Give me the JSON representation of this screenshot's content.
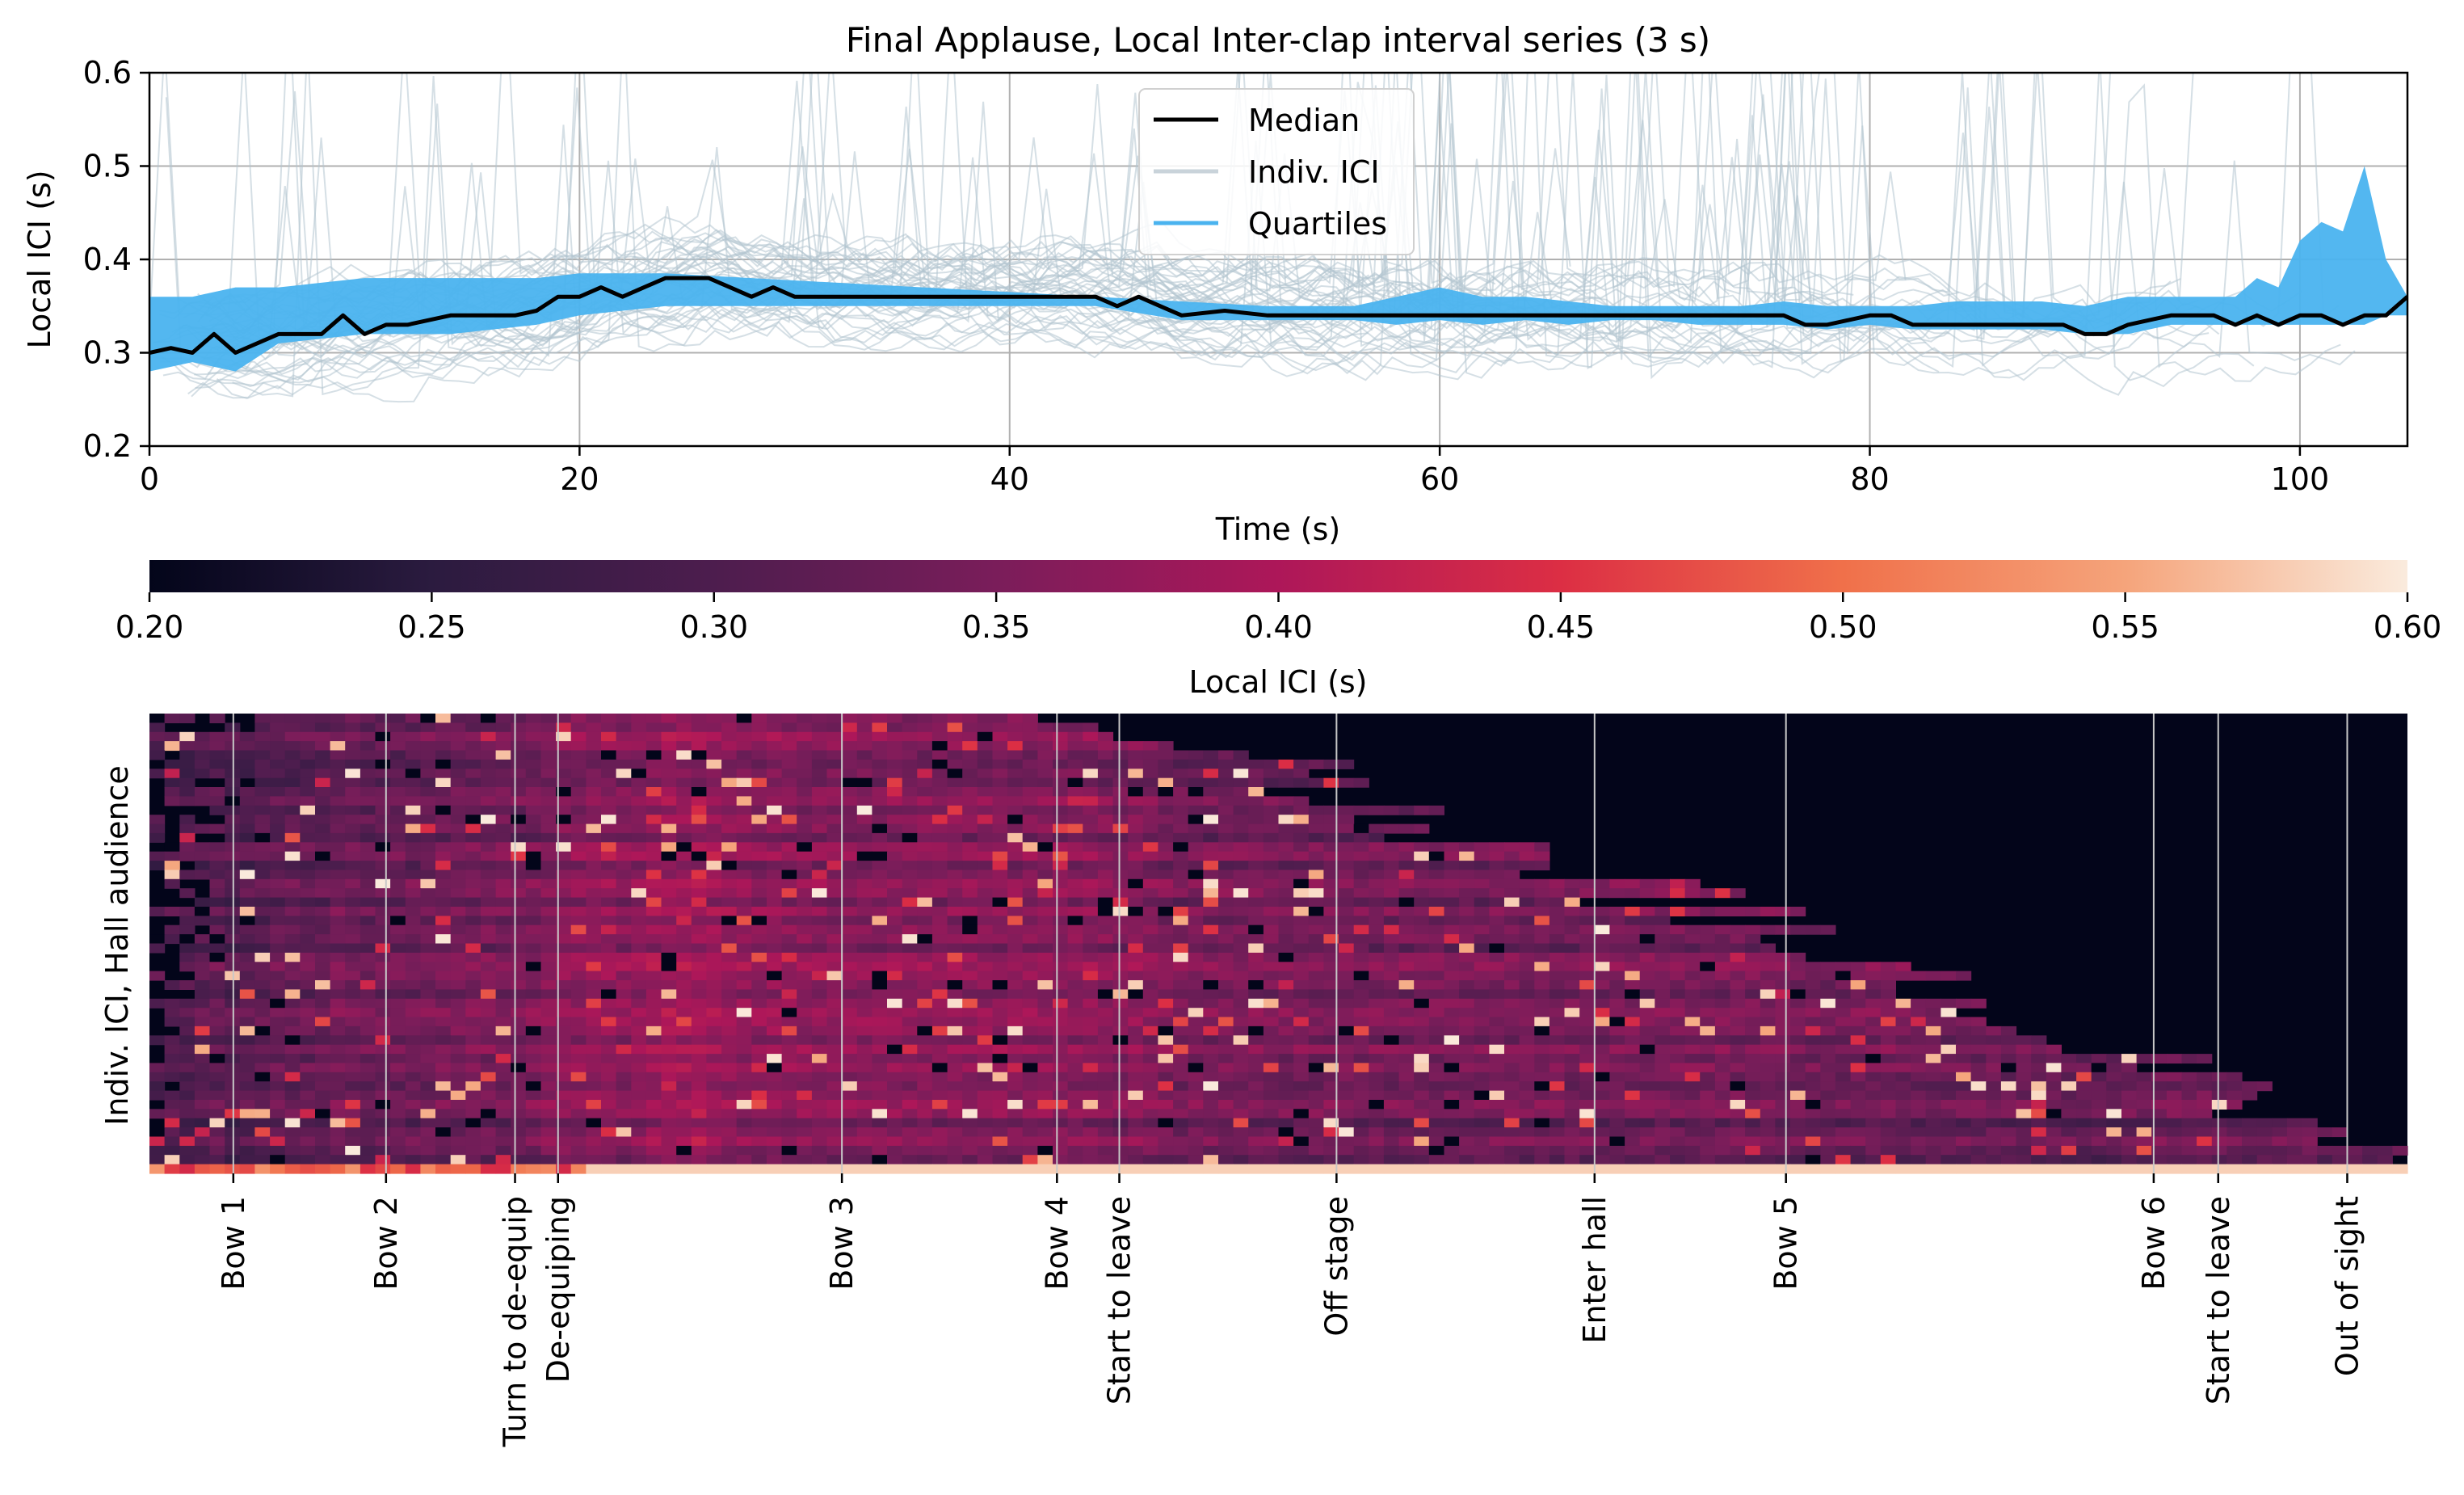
{
  "chart_data": [
    {
      "type": "line",
      "title": "Final Applause, Local Inter-clap interval series (3 s)",
      "xlabel": "Time (s)",
      "ylabel": "Local ICI (s)",
      "xlim": [
        0,
        105
      ],
      "ylim": [
        0.2,
        0.6
      ],
      "xticks": [
        0,
        20,
        40,
        60,
        80,
        100
      ],
      "yticks": [
        0.2,
        0.3,
        0.4,
        0.5,
        0.6
      ],
      "xtick_labels": [
        "0",
        "20",
        "40",
        "60",
        "80",
        "100"
      ],
      "ytick_labels": [
        "0.2",
        "0.3",
        "0.4",
        "0.5",
        "0.6"
      ],
      "grid": true,
      "legend_position": "top-center",
      "legend": [
        "Median",
        "Indiv. ICI",
        "Quartiles"
      ],
      "colors": {
        "median": "#000000",
        "indiv": "#b7c7d3",
        "quartiles": "#4ab3ef"
      },
      "median": {
        "x": [
          0,
          1,
          2,
          3,
          4,
          6,
          8,
          9,
          10,
          11,
          12,
          14,
          16,
          17,
          18,
          19,
          20,
          21,
          22,
          23,
          24,
          26,
          27,
          28,
          29,
          30,
          33,
          36,
          40,
          44,
          45,
          46,
          47,
          48,
          50,
          52,
          56,
          60,
          65,
          70,
          75,
          76,
          77,
          78,
          80,
          81,
          82,
          84,
          86,
          88,
          89,
          90,
          91,
          92,
          94,
          96,
          97,
          98,
          99,
          100,
          101,
          102,
          103,
          104,
          105
        ],
        "y": [
          0.3,
          0.305,
          0.3,
          0.32,
          0.3,
          0.32,
          0.32,
          0.34,
          0.32,
          0.33,
          0.33,
          0.34,
          0.34,
          0.34,
          0.345,
          0.36,
          0.36,
          0.37,
          0.36,
          0.37,
          0.38,
          0.38,
          0.37,
          0.36,
          0.37,
          0.36,
          0.36,
          0.36,
          0.36,
          0.36,
          0.35,
          0.36,
          0.35,
          0.34,
          0.345,
          0.34,
          0.34,
          0.34,
          0.34,
          0.34,
          0.34,
          0.34,
          0.33,
          0.33,
          0.34,
          0.34,
          0.33,
          0.33,
          0.33,
          0.33,
          0.33,
          0.32,
          0.32,
          0.33,
          0.34,
          0.34,
          0.33,
          0.34,
          0.33,
          0.34,
          0.34,
          0.33,
          0.34,
          0.34,
          0.36
        ]
      },
      "quartiles": {
        "x": [
          0,
          2,
          4,
          6,
          10,
          12,
          14,
          18,
          20,
          24,
          28,
          32,
          36,
          40,
          44,
          48,
          52,
          56,
          58,
          60,
          62,
          64,
          66,
          68,
          70,
          72,
          74,
          76,
          78,
          80,
          82,
          84,
          86,
          88,
          90,
          92,
          94,
          96,
          97,
          98,
          99,
          100,
          101,
          102,
          103,
          104,
          105
        ],
        "lower": [
          0.28,
          0.29,
          0.28,
          0.31,
          0.32,
          0.32,
          0.32,
          0.33,
          0.34,
          0.35,
          0.35,
          0.35,
          0.35,
          0.35,
          0.35,
          0.335,
          0.335,
          0.335,
          0.33,
          0.335,
          0.33,
          0.335,
          0.33,
          0.335,
          0.335,
          0.33,
          0.33,
          0.33,
          0.325,
          0.33,
          0.325,
          0.325,
          0.325,
          0.325,
          0.32,
          0.32,
          0.33,
          0.33,
          0.33,
          0.33,
          0.33,
          0.33,
          0.33,
          0.33,
          0.33,
          0.34,
          0.34
        ],
        "upper": [
          0.36,
          0.36,
          0.37,
          0.37,
          0.38,
          0.38,
          0.38,
          0.38,
          0.385,
          0.385,
          0.38,
          0.375,
          0.37,
          0.365,
          0.36,
          0.355,
          0.35,
          0.35,
          0.36,
          0.37,
          0.36,
          0.36,
          0.355,
          0.35,
          0.35,
          0.35,
          0.35,
          0.355,
          0.35,
          0.35,
          0.35,
          0.355,
          0.355,
          0.355,
          0.35,
          0.36,
          0.36,
          0.36,
          0.36,
          0.38,
          0.37,
          0.42,
          0.44,
          0.43,
          0.5,
          0.4,
          0.36
        ]
      }
    },
    {
      "type": "heatmap",
      "ylabel": "Indiv. ICI, Hall audience",
      "colorbar_label": "Local ICI (s)",
      "colorbar_range": [
        0.2,
        0.6
      ],
      "colorbar_ticks": [
        0.2,
        0.25,
        0.3,
        0.35,
        0.4,
        0.45,
        0.5,
        0.55,
        0.6
      ],
      "colorbar_tick_labels": [
        "0.20",
        "0.25",
        "0.30",
        "0.35",
        "0.40",
        "0.45",
        "0.50",
        "0.55",
        "0.60"
      ],
      "colormap": "rocket",
      "event_time_range": [
        0,
        105
      ],
      "events": [
        {
          "label": "Bow 1",
          "time": 3.9
        },
        {
          "label": "Bow 2",
          "time": 11.0
        },
        {
          "label": "Turn to de-equip",
          "time": 17.0
        },
        {
          "label": "De-equiping",
          "time": 19.0
        },
        {
          "label": "Bow 3",
          "time": 32.2
        },
        {
          "label": "Bow 4",
          "time": 42.2
        },
        {
          "label": "Start to leave",
          "time": 45.1
        },
        {
          "label": "Off stage",
          "time": 55.2
        },
        {
          "label": "Enter hall",
          "time": 67.2
        },
        {
          "label": "Bow 5",
          "time": 76.1
        },
        {
          "label": "Bow 6",
          "time": 93.2
        },
        {
          "label": "Start to leave",
          "time": 96.2
        },
        {
          "label": "Out of sight",
          "time": 102.2
        }
      ]
    }
  ]
}
